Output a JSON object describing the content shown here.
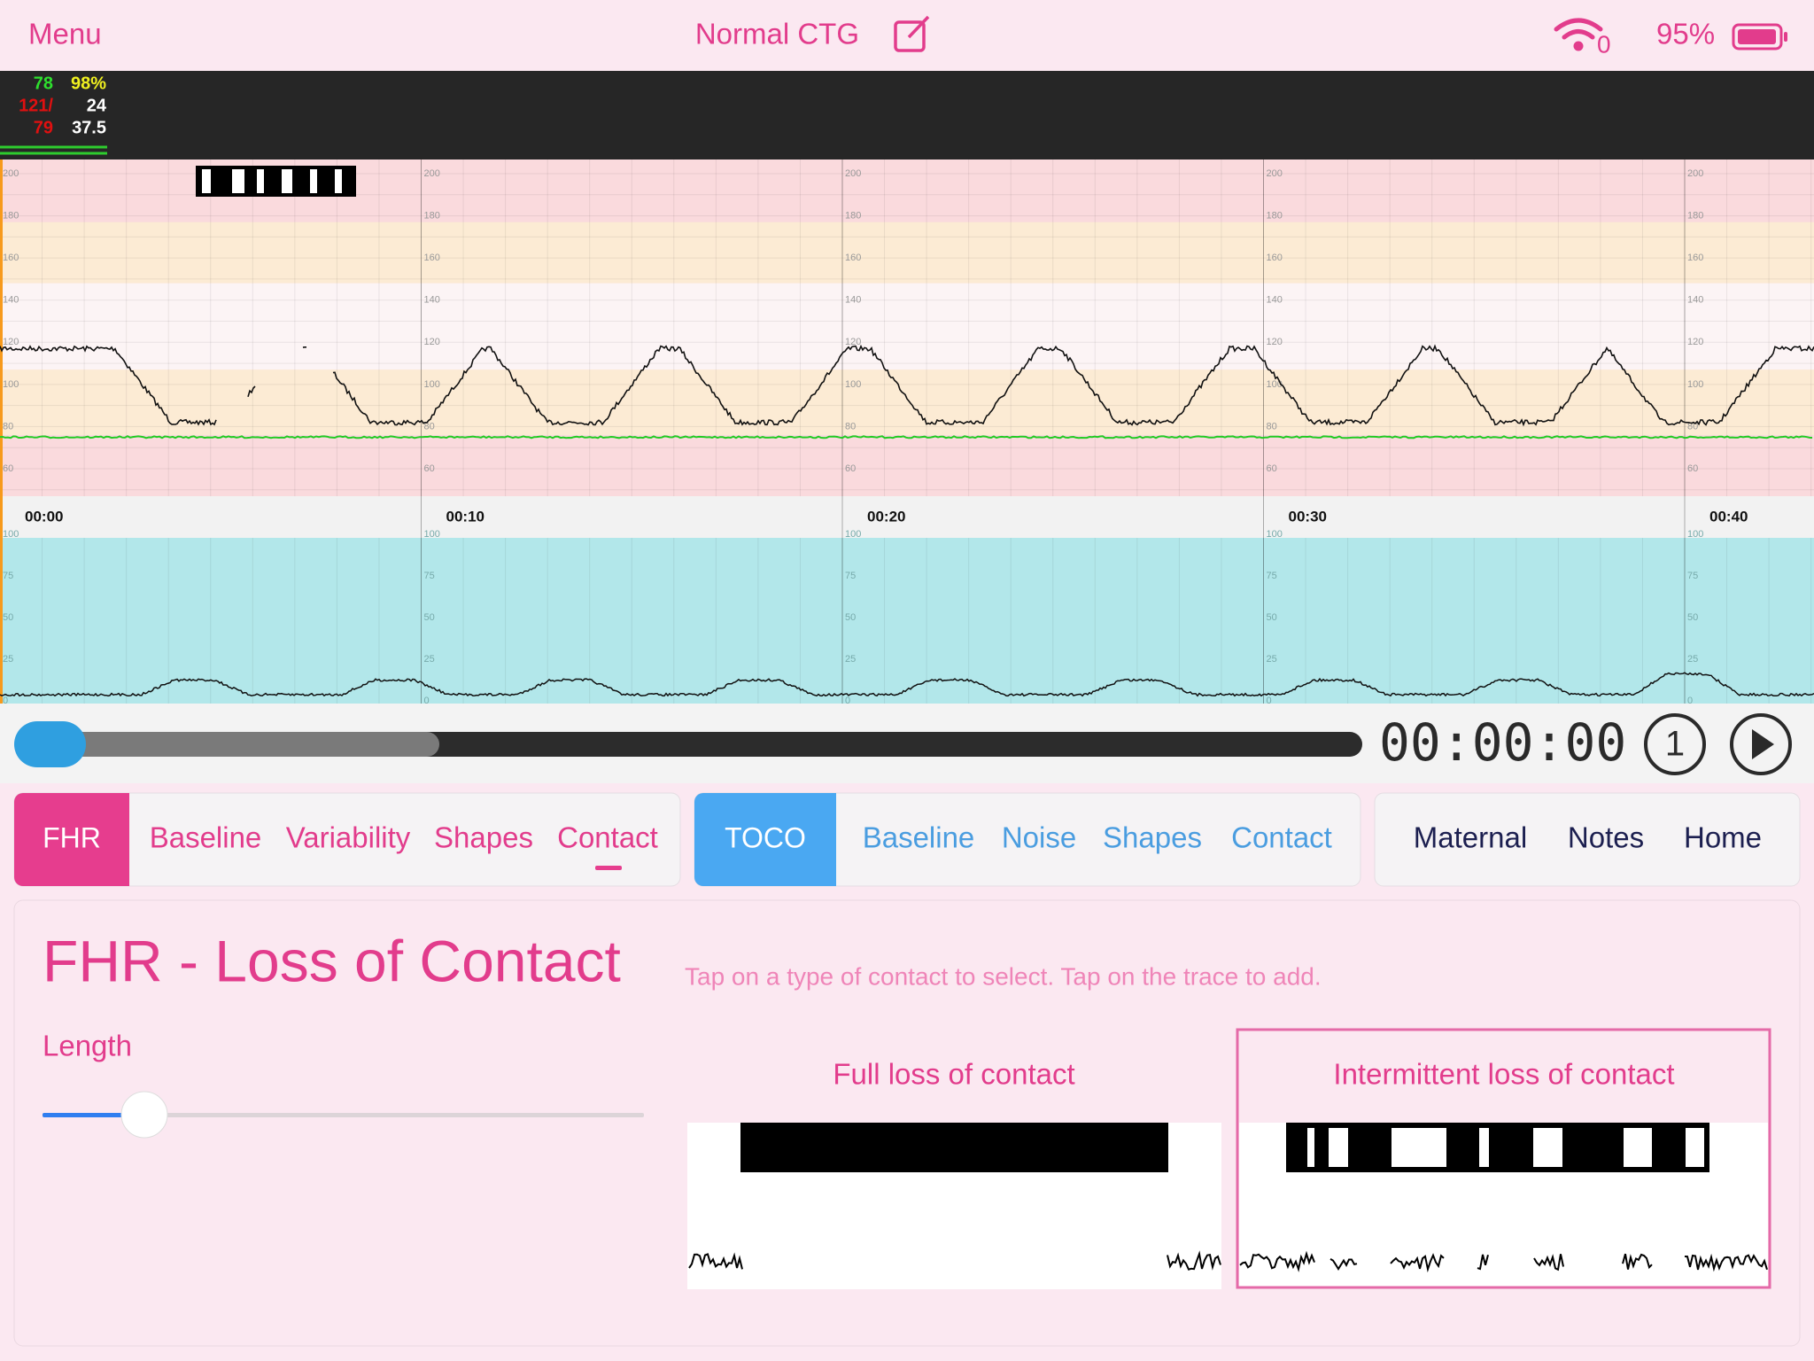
{
  "status_bar": {
    "menu": "Menu",
    "title": "Normal CTG",
    "wifi_count": "0",
    "battery": "95%"
  },
  "vitals": {
    "rows": [
      [
        "78",
        "98%"
      ],
      [
        "121/",
        "24"
      ],
      [
        "79",
        "37.5"
      ]
    ]
  },
  "fhr_axis": {
    "ticks": [
      "200",
      "180",
      "160",
      "140",
      "120",
      "100",
      "80",
      "60"
    ]
  },
  "toco_axis": {
    "ticks": [
      "100",
      "75",
      "50",
      "25",
      "0"
    ]
  },
  "time_labels": [
    "00:00",
    "00:10",
    "00:20",
    "00:30",
    "00:40"
  ],
  "player": {
    "time": "00:00:00",
    "speed": "1"
  },
  "tabs": {
    "fhr": {
      "label": "FHR",
      "items": [
        "Baseline",
        "Variability",
        "Shapes",
        "Contact"
      ]
    },
    "toco": {
      "label": "TOCO",
      "items": [
        "Baseline",
        "Noise",
        "Shapes",
        "Contact"
      ]
    },
    "other": [
      "Maternal",
      "Notes",
      "Home"
    ]
  },
  "panel": {
    "title": "FHR - Loss of Contact",
    "hint": "Tap on a type of contact to select. Tap on the trace to add.",
    "length_label": "Length",
    "options": [
      "Full loss of contact",
      "Intermittent loss of contact"
    ]
  }
}
